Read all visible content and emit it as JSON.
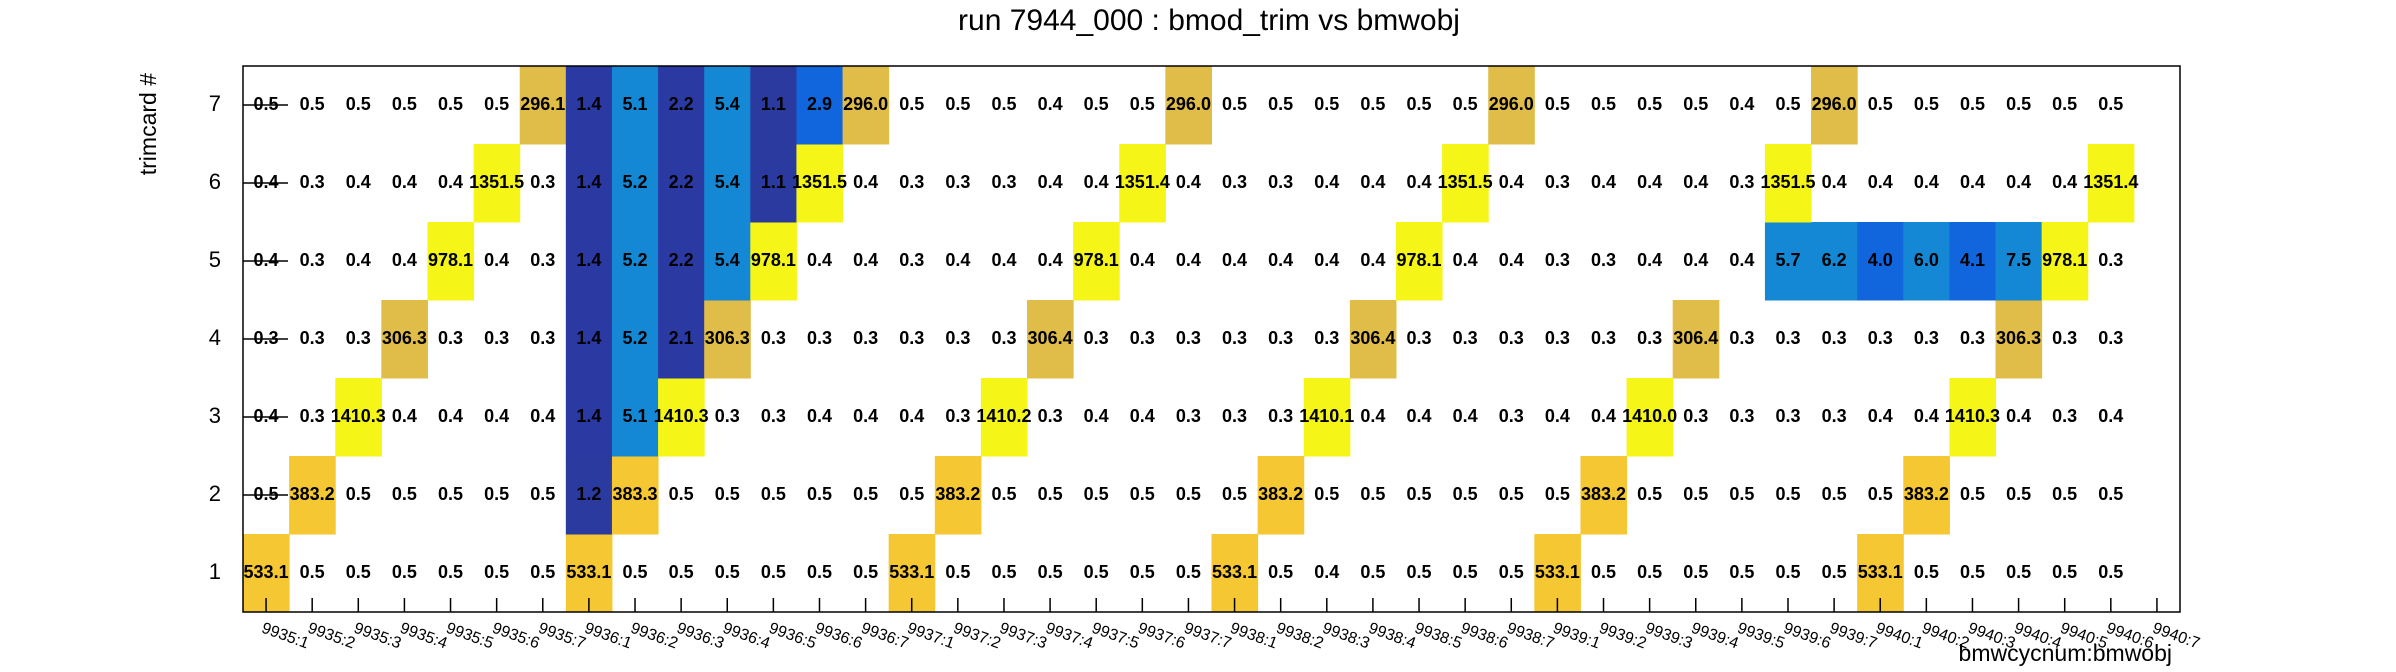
{
  "chart_data": {
    "type": "heatmap",
    "title": "run 7944_000 : bmod_trim vs bmwobj",
    "x_label": "bmwcycnum:bmwobj",
    "y_label": "trimcard #",
    "x_categories": [
      "9935:1",
      "9935:2",
      "9935:3",
      "9935:4",
      "9935:5",
      "9935:6",
      "9935:7",
      "9936:1",
      "9936:2",
      "9936:3",
      "9936:4",
      "9936:5",
      "9936:6",
      "9936:7",
      "9937:1",
      "9937:2",
      "9937:3",
      "9937:4",
      "9937:5",
      "9937:6",
      "9937:7",
      "9938:1",
      "9938:2",
      "9938:3",
      "9938:4",
      "9938:5",
      "9938:6",
      "9938:7",
      "9939:1",
      "9939:2",
      "9939:3",
      "9939:4",
      "9939:5",
      "9939:6",
      "9939:7",
      "9940:1",
      "9940:2",
      "9940:3",
      "9940:4",
      "9940:5",
      "9940:6",
      "9940:7"
    ],
    "y_categories": [
      "1",
      "2",
      "3",
      "4",
      "5",
      "6",
      "7"
    ],
    "log_color": true,
    "palette": [
      "#ffffff",
      "#2b3a9e",
      "#2a3aa2",
      "#1166dd",
      "#1488d4",
      "#19a3b8",
      "#3cb88a",
      "#8cc05a",
      "#c8c04a",
      "#e0bc48",
      "#f5c733",
      "#f5f518"
    ],
    "z": [
      [
        533.1,
        0.5,
        0.5,
        0.5,
        0.5,
        0.5,
        0.5,
        533.1,
        0.5,
        0.5,
        0.5,
        0.5,
        0.5,
        0.5,
        533.1,
        0.5,
        0.5,
        0.5,
        0.5,
        0.5,
        0.5,
        533.1,
        0.5,
        0.4,
        0.5,
        0.5,
        0.5,
        0.5,
        533.1,
        0.5,
        0.5,
        0.5,
        0.5,
        0.5,
        0.5,
        533.1,
        0.5,
        0.5,
        0.5,
        0.5,
        0.5,
        null
      ],
      [
        0.5,
        383.2,
        0.5,
        0.5,
        0.5,
        0.5,
        0.5,
        1.2,
        383.3,
        0.5,
        0.5,
        0.5,
        0.5,
        0.5,
        0.5,
        383.2,
        0.5,
        0.5,
        0.5,
        0.5,
        0.5,
        0.5,
        383.2,
        0.5,
        0.5,
        0.5,
        0.5,
        0.5,
        0.5,
        383.2,
        0.5,
        0.5,
        0.5,
        0.5,
        0.5,
        0.5,
        383.2,
        0.5,
        0.5,
        0.5,
        0.5,
        null
      ],
      [
        0.4,
        0.3,
        1410.3,
        0.4,
        0.4,
        0.4,
        0.4,
        1.4,
        5.1,
        1410.3,
        0.3,
        0.3,
        0.4,
        0.4,
        0.4,
        0.3,
        1410.2,
        0.3,
        0.4,
        0.4,
        0.3,
        0.3,
        0.3,
        1410.1,
        0.4,
        0.4,
        0.4,
        0.3,
        0.4,
        0.4,
        1410.0,
        0.3,
        0.3,
        0.3,
        0.3,
        0.4,
        0.4,
        1410.3,
        0.4,
        0.3,
        0.4,
        null
      ],
      [
        0.3,
        0.3,
        0.3,
        306.3,
        0.3,
        0.3,
        0.3,
        1.4,
        5.2,
        2.1,
        306.3,
        0.3,
        0.3,
        0.3,
        0.3,
        0.3,
        0.3,
        306.4,
        0.3,
        0.3,
        0.3,
        0.3,
        0.3,
        0.3,
        306.4,
        0.3,
        0.3,
        0.3,
        0.3,
        0.3,
        0.3,
        306.4,
        0.3,
        0.3,
        0.3,
        0.3,
        0.3,
        0.3,
        306.3,
        0.3,
        0.3,
        null
      ],
      [
        0.4,
        0.3,
        0.4,
        0.4,
        978.1,
        0.4,
        0.3,
        1.4,
        5.2,
        2.2,
        5.4,
        978.1,
        0.4,
        0.4,
        0.3,
        0.4,
        0.4,
        0.4,
        978.1,
        0.4,
        0.4,
        0.4,
        0.4,
        0.4,
        0.4,
        978.1,
        0.4,
        0.4,
        0.3,
        0.3,
        0.4,
        0.4,
        0.4,
        5.7,
        6.2,
        4.0,
        6.0,
        4.1,
        7.5,
        978.1,
        0.3,
        null
      ],
      [
        0.4,
        0.3,
        0.4,
        0.4,
        0.4,
        1351.5,
        0.3,
        1.4,
        5.2,
        2.2,
        5.4,
        1.1,
        1351.5,
        0.4,
        0.3,
        0.3,
        0.3,
        0.4,
        0.4,
        1351.4,
        0.4,
        0.3,
        0.3,
        0.4,
        0.4,
        0.4,
        1351.5,
        0.4,
        0.3,
        0.4,
        0.4,
        0.4,
        0.3,
        1351.5,
        0.4,
        0.4,
        0.4,
        0.4,
        0.4,
        0.4,
        1351.4,
        null
      ],
      [
        0.5,
        0.5,
        0.5,
        0.5,
        0.5,
        0.5,
        296.1,
        1.4,
        5.1,
        2.2,
        5.4,
        1.1,
        2.9,
        296.0,
        0.5,
        0.5,
        0.5,
        0.4,
        0.5,
        0.5,
        296.0,
        0.5,
        0.5,
        0.5,
        0.5,
        0.5,
        0.5,
        296.0,
        0.5,
        0.5,
        0.5,
        0.5,
        0.4,
        0.5,
        296.0,
        0.5,
        0.5,
        0.5,
        0.5,
        0.5,
        0.5,
        null
      ]
    ],
    "value_labels": [
      [
        "533.1",
        "0.5",
        "0.5",
        "0.5",
        "0.5",
        "0.5",
        "0.5",
        "533.1",
        "0.5",
        "0.5",
        "0.5",
        "0.5",
        "0.5",
        "0.5",
        "533.1",
        "0.5",
        "0.5",
        "0.5",
        "0.5",
        "0.5",
        "0.5",
        "533.1",
        "0.5",
        "0.4",
        "0.5",
        "0.5",
        "0.5",
        "0.5",
        "533.1",
        "0.5",
        "0.5",
        "0.5",
        "0.5",
        "0.5",
        "0.5",
        "533.1",
        "0.5",
        "0.5",
        "0.5",
        "0.5",
        "0.5",
        null
      ],
      [
        "0.5",
        "383.2",
        "0.5",
        "0.5",
        "0.5",
        "0.5",
        "0.5",
        "1.2",
        "383.3",
        "0.5",
        "0.5",
        "0.5",
        "0.5",
        "0.5",
        "0.5",
        "383.2",
        "0.5",
        "0.5",
        "0.5",
        "0.5",
        "0.5",
        "0.5",
        "383.2",
        "0.5",
        "0.5",
        "0.5",
        "0.5",
        "0.5",
        "0.5",
        "383.2",
        "0.5",
        "0.5",
        "0.5",
        "0.5",
        "0.5",
        "0.5",
        "383.2",
        "0.5",
        "0.5",
        "0.5",
        "0.5",
        null
      ],
      [
        "0.4",
        "0.3",
        "1410.3",
        "0.4",
        "0.4",
        "0.4",
        "0.4",
        "1.4",
        "5.1",
        "1410.3",
        "0.3",
        "0.3",
        "0.4",
        "0.4",
        "0.4",
        "0.3",
        "1410.2",
        "0.3",
        "0.4",
        "0.4",
        "0.3",
        "0.3",
        "0.3",
        "1410.1",
        "0.4",
        "0.4",
        "0.4",
        "0.3",
        "0.4",
        "0.4",
        "1410.0",
        "0.3",
        "0.3",
        "0.3",
        "0.3",
        "0.4",
        "0.4",
        "1410.3",
        "0.4",
        "0.3",
        "0.4",
        null
      ],
      [
        "0.3",
        "0.3",
        "0.3",
        "306.3",
        "0.3",
        "0.3",
        "0.3",
        "1.4",
        "5.2",
        "2.1",
        "306.3",
        "0.3",
        "0.3",
        "0.3",
        "0.3",
        "0.3",
        "0.3",
        "306.4",
        "0.3",
        "0.3",
        "0.3",
        "0.3",
        "0.3",
        "0.3",
        "306.4",
        "0.3",
        "0.3",
        "0.3",
        "0.3",
        "0.3",
        "0.3",
        "306.4",
        "0.3",
        "0.3",
        "0.3",
        "0.3",
        "0.3",
        "0.3",
        "306.3",
        "0.3",
        "0.3",
        null
      ],
      [
        "0.4",
        "0.3",
        "0.4",
        "0.4",
        "978.1",
        "0.4",
        "0.3",
        "1.4",
        "5.2",
        "2.2",
        "5.4",
        "978.1",
        "0.4",
        "0.4",
        "0.3",
        "0.4",
        "0.4",
        "0.4",
        "978.1",
        "0.4",
        "0.4",
        "0.4",
        "0.4",
        "0.4",
        "0.4",
        "978.1",
        "0.4",
        "0.4",
        "0.3",
        "0.3",
        "0.4",
        "0.4",
        "0.4",
        "5.7",
        "6.2",
        "4.0",
        "6.0",
        "4.1",
        "7.5",
        "978.1",
        "0.3",
        null
      ],
      [
        "0.4",
        "0.3",
        "0.4",
        "0.4",
        "0.4",
        "1351.5",
        "0.3",
        "1.4",
        "5.2",
        "2.2",
        "5.4",
        "1.1",
        "1351.5",
        "0.4",
        "0.3",
        "0.3",
        "0.3",
        "0.4",
        "0.4",
        "1351.4",
        "0.4",
        "0.3",
        "0.3",
        "0.4",
        "0.4",
        "0.4",
        "1351.5",
        "0.4",
        "0.3",
        "0.4",
        "0.4",
        "0.4",
        "0.3",
        "1351.5",
        "0.4",
        "0.4",
        "0.4",
        "0.4",
        "0.4",
        "0.4",
        "1351.4",
        null
      ],
      [
        "0.5",
        "0.5",
        "0.5",
        "0.5",
        "0.5",
        "0.5",
        "296.1",
        "1.4",
        "5.1",
        "2.2",
        "5.4",
        "1.1",
        "2.9",
        "296.0",
        "0.5",
        "0.5",
        "0.5",
        "0.4",
        "0.5",
        "0.5",
        "296.0",
        "0.5",
        "0.5",
        "0.5",
        "0.5",
        "0.5",
        "0.5",
        "296.0",
        "0.5",
        "0.5",
        "0.5",
        "0.5",
        "0.4",
        "0.5",
        "296.0",
        "0.5",
        "0.5",
        "0.5",
        "0.5",
        "0.5",
        "0.5",
        null
      ]
    ]
  }
}
